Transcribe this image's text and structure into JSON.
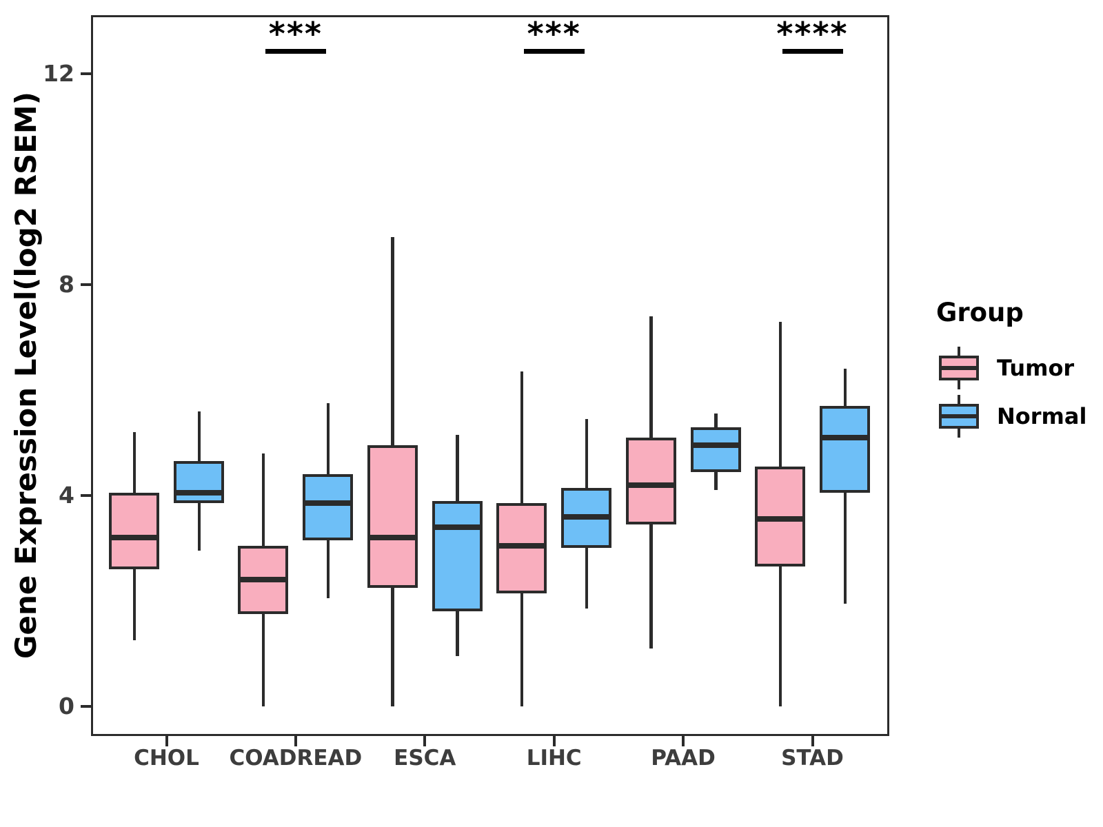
{
  "chart_data": {
    "type": "boxplot",
    "title": "",
    "xlabel": "",
    "ylabel": "Gene Expression Level(log2 RSEM)",
    "ylim": [
      -0.6,
      13.1
    ],
    "yticks": [
      0,
      4,
      8,
      12
    ],
    "grid": "off",
    "categories": [
      "CHOL",
      "COADREAD",
      "ESCA",
      "LIHC",
      "PAAD",
      "STAD"
    ],
    "legend": {
      "title": "Group",
      "position": "right",
      "entries": [
        {
          "label": "Tumor",
          "color": "#f9aebe"
        },
        {
          "label": "Normal",
          "color": "#6ebff7"
        }
      ]
    },
    "series": [
      {
        "name": "Tumor",
        "color": "#f9aebe",
        "stat_order": [
          "min",
          "q1",
          "median",
          "q3",
          "max"
        ],
        "boxes": [
          {
            "category": "CHOL",
            "stats": [
              1.25,
              2.6,
              3.2,
              4.05,
              5.2
            ]
          },
          {
            "category": "COADREAD",
            "stats": [
              0.0,
              1.75,
              2.4,
              3.05,
              4.8
            ]
          },
          {
            "category": "ESCA",
            "stats": [
              0.0,
              2.25,
              3.2,
              4.95,
              8.9
            ]
          },
          {
            "category": "LIHC",
            "stats": [
              0.0,
              2.15,
              3.05,
              3.85,
              6.35
            ]
          },
          {
            "category": "PAAD",
            "stats": [
              1.1,
              3.45,
              4.2,
              5.1,
              7.4
            ]
          },
          {
            "category": "STAD",
            "stats": [
              0.0,
              2.65,
              3.55,
              4.55,
              7.3
            ]
          }
        ]
      },
      {
        "name": "Normal",
        "color": "#6ebff7",
        "stat_order": [
          "min",
          "q1",
          "median",
          "q3",
          "max"
        ],
        "boxes": [
          {
            "category": "CHOL",
            "stats": [
              2.95,
              3.85,
              4.05,
              4.65,
              5.6
            ]
          },
          {
            "category": "COADREAD",
            "stats": [
              2.05,
              3.15,
              3.85,
              4.4,
              5.75
            ]
          },
          {
            "category": "ESCA",
            "stats": [
              0.95,
              1.8,
              3.4,
              3.9,
              5.15
            ]
          },
          {
            "category": "LIHC",
            "stats": [
              1.85,
              3.0,
              3.6,
              4.15,
              5.45
            ]
          },
          {
            "category": "PAAD",
            "stats": [
              4.1,
              4.45,
              4.95,
              5.3,
              5.55
            ]
          },
          {
            "category": "STAD",
            "stats": [
              1.95,
              4.05,
              5.1,
              5.7,
              6.4
            ]
          }
        ]
      }
    ],
    "significance": [
      {
        "category": "COADREAD",
        "label": "***"
      },
      {
        "category": "LIHC",
        "label": "***"
      },
      {
        "category": "STAD",
        "label": "****"
      }
    ],
    "colors": {
      "stroke": "#2b2b2b",
      "axis_text": "#3d3d3d",
      "background": "#ffffff"
    }
  }
}
